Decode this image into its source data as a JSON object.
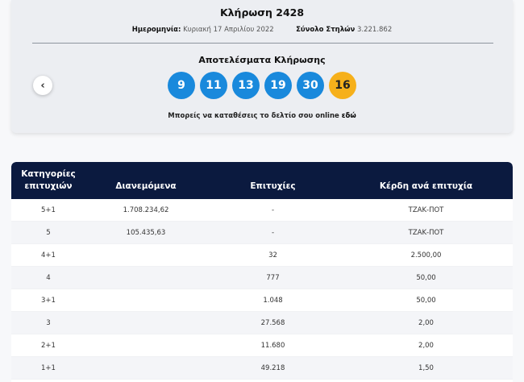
{
  "draw": {
    "title": "Κλήρωση 2428",
    "date_label": "Ημερομηνία:",
    "date_value": "Κυριακή 17 Απριλίου 2022",
    "columns_label": "Σύνολο Στηλών",
    "columns_value": "3.221.862",
    "results_title": "Αποτελέσματα Κλήρωσης",
    "prev_icon": "‹",
    "numbers": [
      "9",
      "11",
      "13",
      "19",
      "30"
    ],
    "bonus": "16",
    "deposit_text": "Μπορείς να καταθέσεις το δελτίο σου online",
    "deposit_link": "εδώ",
    "colors": {
      "ball": "#1989dc",
      "bonus": "#f6b01b",
      "header": "#0b1a3f"
    }
  },
  "table": {
    "headers": {
      "categories_line1": "Κατηγορίες",
      "categories_line2": "επιτυχιών",
      "distributed": "Διανεμόμενα",
      "winners": "Επιτυχίες",
      "prize": "Κέρδη ανά επιτυχία"
    },
    "rows": [
      {
        "category": "5+1",
        "distributed": "1.708.234,62",
        "winners": "-",
        "prize": "ΤΖΑΚ-ΠΟΤ"
      },
      {
        "category": "5",
        "distributed": "105.435,63",
        "winners": "-",
        "prize": "ΤΖΑΚ-ΠΟΤ"
      },
      {
        "category": "4+1",
        "distributed": "",
        "winners": "32",
        "prize": "2.500,00"
      },
      {
        "category": "4",
        "distributed": "",
        "winners": "777",
        "prize": "50,00"
      },
      {
        "category": "3+1",
        "distributed": "",
        "winners": "1.048",
        "prize": "50,00"
      },
      {
        "category": "3",
        "distributed": "",
        "winners": "27.568",
        "prize": "2,00"
      },
      {
        "category": "2+1",
        "distributed": "",
        "winners": "11.680",
        "prize": "2,00"
      },
      {
        "category": "1+1",
        "distributed": "",
        "winners": "49.218",
        "prize": "1,50"
      }
    ]
  }
}
